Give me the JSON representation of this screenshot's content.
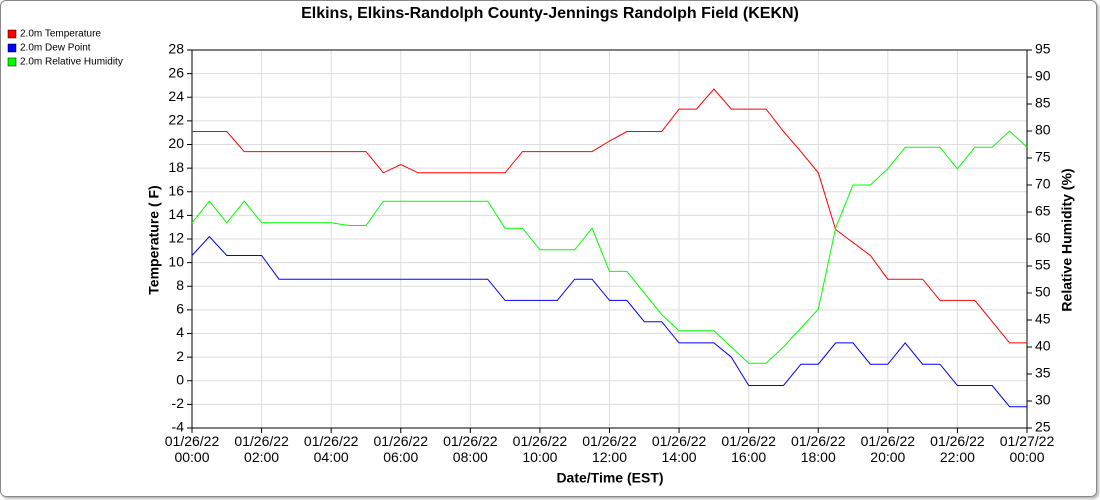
{
  "chart_data": {
    "type": "line",
    "title": "Elkins, Elkins-Randolph County-Jennings Randolph Field (KEKN)",
    "xlabel": "Date/Time (EST)",
    "ylabel": "Temperature ( F)",
    "y2label": "Relative Humidity (%)",
    "x": [
      "01/26/22 00:00",
      "01/26/22 00:30",
      "01/26/22 01:00",
      "01/26/22 01:30",
      "01/26/22 02:00",
      "01/26/22 02:30",
      "01/26/22 03:00",
      "01/26/22 03:30",
      "01/26/22 04:00",
      "01/26/22 04:30",
      "01/26/22 05:00",
      "01/26/22 05:30",
      "01/26/22 06:00",
      "01/26/22 06:30",
      "01/26/22 07:00",
      "01/26/22 07:30",
      "01/26/22 08:00",
      "01/26/22 08:30",
      "01/26/22 09:00",
      "01/26/22 09:30",
      "01/26/22 10:00",
      "01/26/22 10:30",
      "01/26/22 11:00",
      "01/26/22 11:30",
      "01/26/22 12:00",
      "01/26/22 12:30",
      "01/26/22 13:00",
      "01/26/22 13:30",
      "01/26/22 14:00",
      "01/26/22 14:30",
      "01/26/22 15:00",
      "01/26/22 15:30",
      "01/26/22 16:00",
      "01/26/22 16:30",
      "01/26/22 17:00",
      "01/26/22 17:30",
      "01/26/22 18:00",
      "01/26/22 18:30",
      "01/26/22 19:00",
      "01/26/22 19:30",
      "01/26/22 20:00",
      "01/26/22 20:30",
      "01/26/22 21:00",
      "01/26/22 21:30",
      "01/26/22 22:00",
      "01/26/22 22:30",
      "01/26/22 23:00",
      "01/26/22 23:30",
      "01/27/22 00:00"
    ],
    "series": [
      {
        "name": "2.0m Temperature",
        "color": "#ff0000",
        "values": [
          21.1,
          21.1,
          21.1,
          19.4,
          19.4,
          19.4,
          19.4,
          19.4,
          19.4,
          19.4,
          19.4,
          17.6,
          18.3,
          17.6,
          17.6,
          17.6,
          17.6,
          17.6,
          17.6,
          19.4,
          19.4,
          19.4,
          19.4,
          19.4,
          20.3,
          21.1,
          21.1,
          21.1,
          23.0,
          23.0,
          24.7,
          23.0,
          23.0,
          23.0,
          21.1,
          19.4,
          17.6,
          12.8,
          11.7,
          10.6,
          8.6,
          8.6,
          8.6,
          6.8,
          6.8,
          6.8,
          5.0,
          3.2,
          3.2
        ]
      },
      {
        "name": "2.0m Dew Point",
        "color": "#0000ff",
        "values": [
          10.6,
          12.2,
          10.6,
          10.6,
          10.6,
          8.6,
          8.6,
          8.6,
          8.6,
          8.6,
          8.6,
          8.6,
          8.6,
          8.6,
          8.6,
          8.6,
          8.6,
          8.6,
          6.8,
          6.8,
          6.8,
          6.8,
          8.6,
          8.6,
          6.8,
          6.8,
          5.0,
          5.0,
          3.2,
          3.2,
          3.2,
          2.0,
          -0.4,
          -0.4,
          -0.4,
          1.4,
          1.4,
          3.2,
          3.2,
          1.4,
          1.4,
          3.2,
          1.4,
          1.4,
          -0.4,
          -0.4,
          -0.4,
          -2.2,
          -2.2
        ]
      },
      {
        "name": "2.0m Relative Humidity",
        "color": "#00ff00",
        "axis": "y2",
        "values": [
          63,
          67,
          63,
          67,
          63,
          63,
          63,
          63,
          63,
          62.5,
          62.5,
          67,
          67,
          67,
          67,
          67,
          67,
          67,
          62,
          62,
          58,
          58,
          58,
          62,
          54,
          54,
          50,
          46,
          43,
          43,
          43,
          40,
          37,
          37,
          40,
          43.5,
          47,
          62,
          70,
          70,
          73,
          77,
          77,
          77,
          73,
          77,
          77,
          80,
          77
        ]
      }
    ],
    "xlim": [
      "01/26/22 00:00",
      "01/27/22 00:00"
    ],
    "xticks": [
      "01/26/22 00:00",
      "01/26/22 02:00",
      "01/26/22 04:00",
      "01/26/22 06:00",
      "01/26/22 08:00",
      "01/26/22 10:00",
      "01/26/22 12:00",
      "01/26/22 14:00",
      "01/26/22 16:00",
      "01/26/22 18:00",
      "01/26/22 20:00",
      "01/26/22 22:00",
      "01/27/22 00:00"
    ],
    "ylim": [
      -4,
      28
    ],
    "yticks": [
      -4,
      -2,
      0,
      2,
      4,
      6,
      8,
      10,
      12,
      14,
      16,
      18,
      20,
      22,
      24,
      26,
      28
    ],
    "y2lim": [
      25,
      95
    ],
    "y2ticks": [
      25,
      30,
      35,
      40,
      45,
      50,
      55,
      60,
      65,
      70,
      75,
      80,
      85,
      90,
      95
    ],
    "grid": true,
    "legend": "top-left"
  }
}
